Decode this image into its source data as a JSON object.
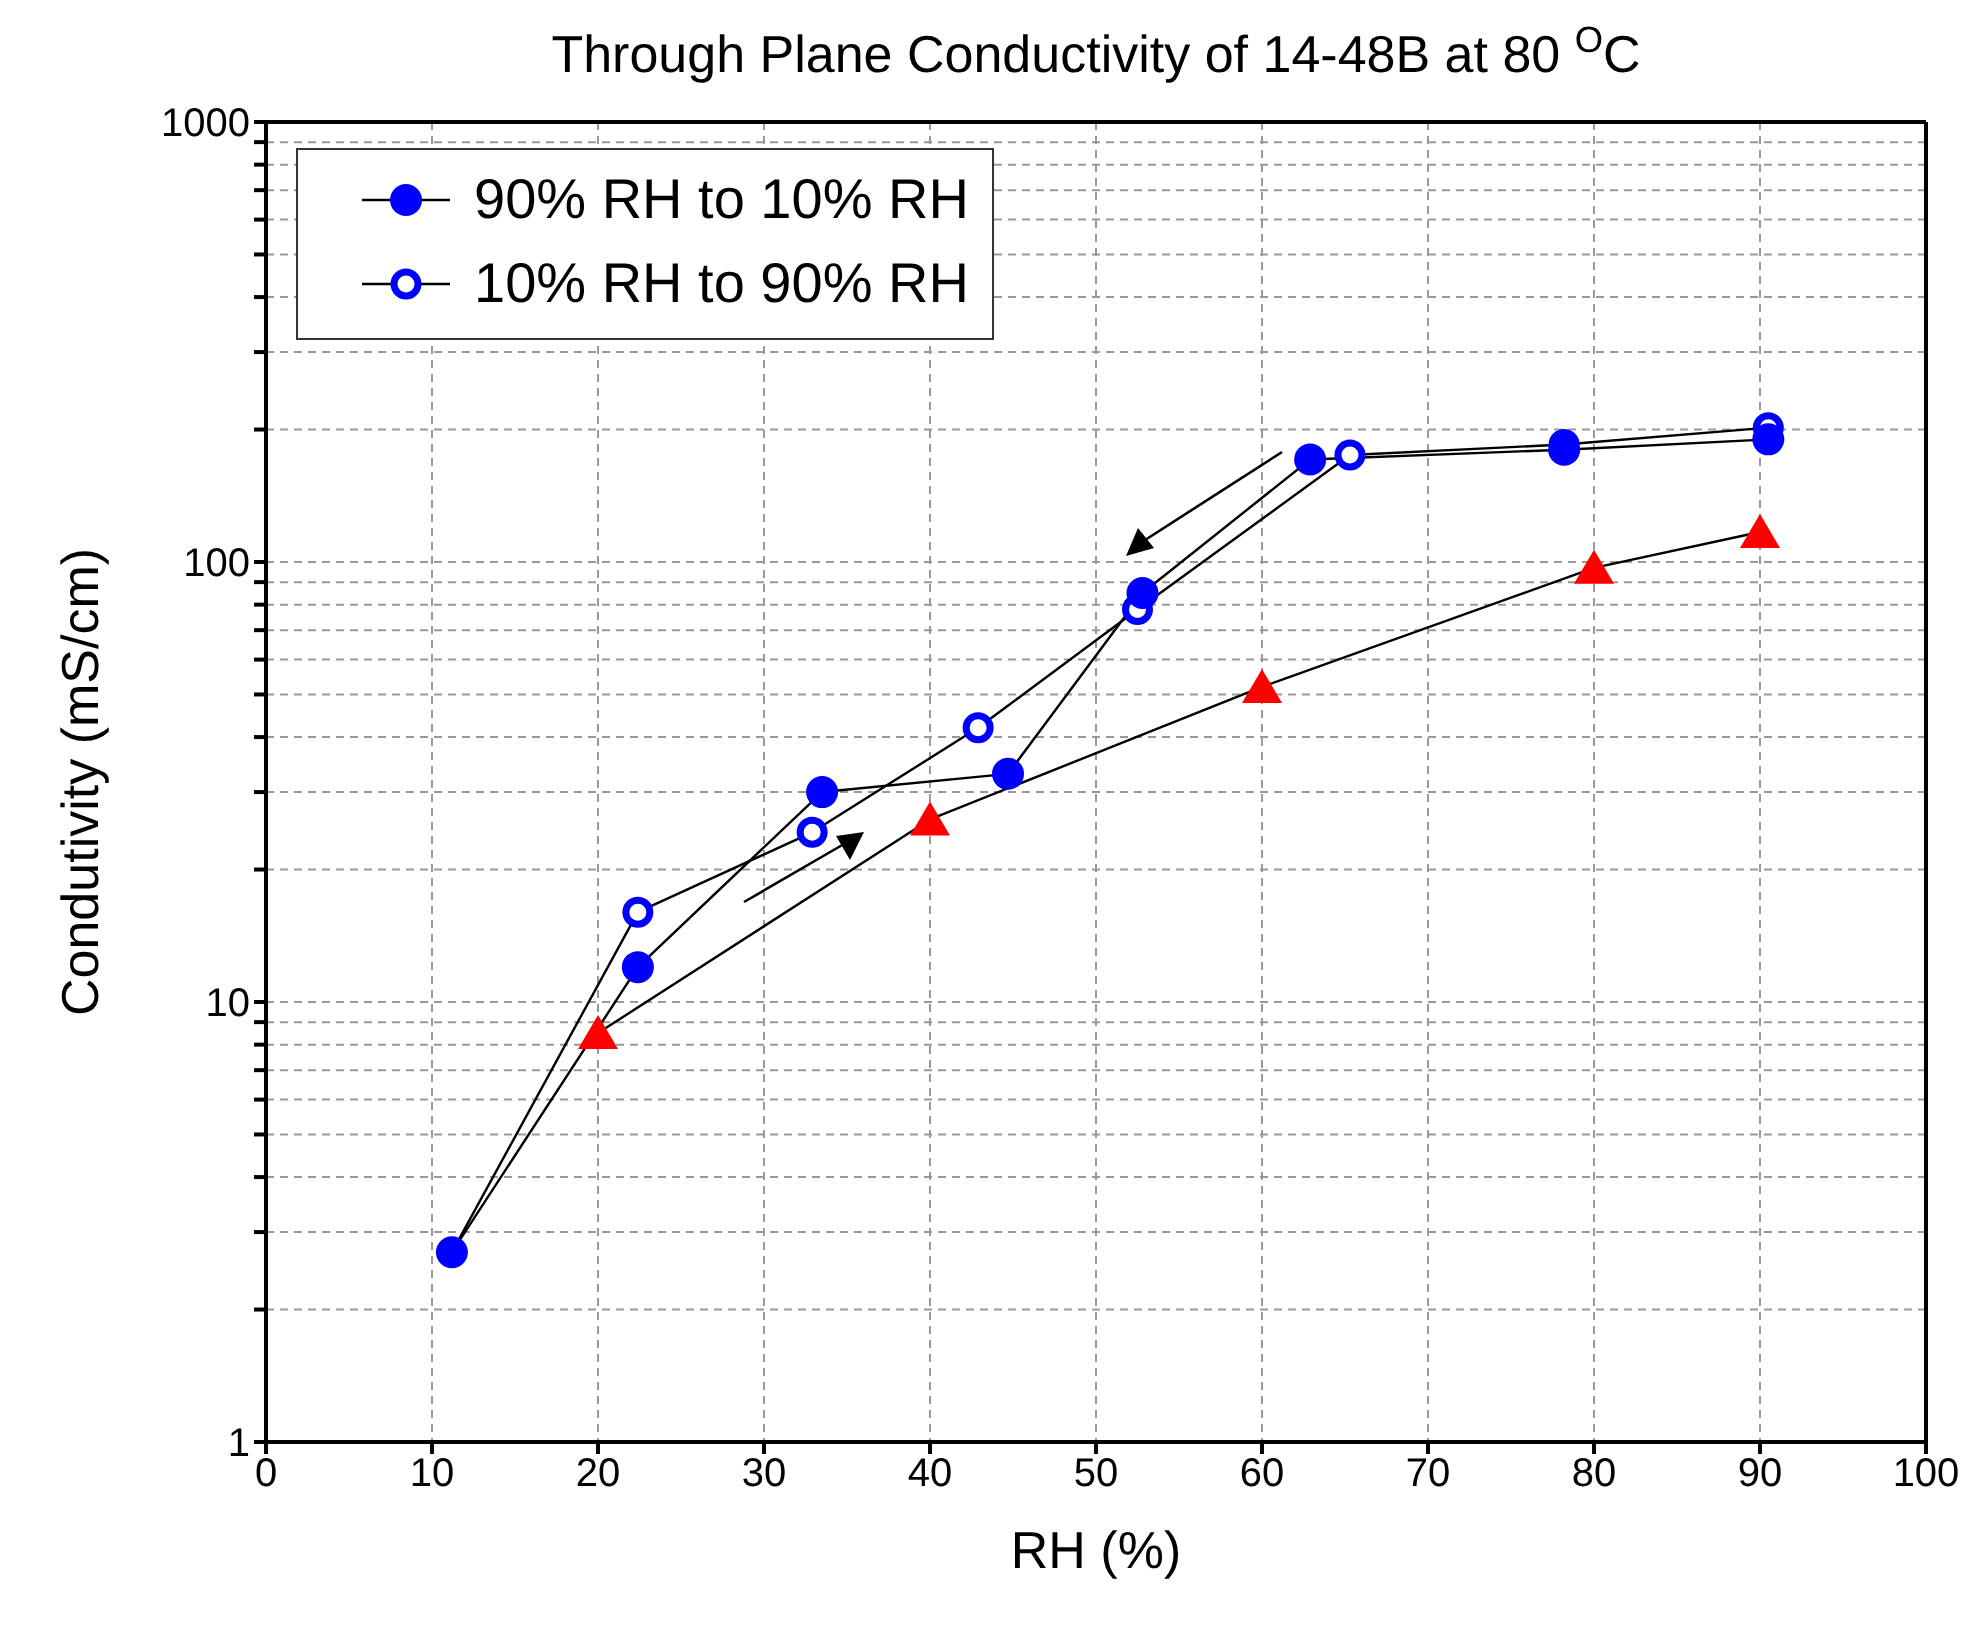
{
  "chart_data": {
    "type": "line",
    "title": "Through Plane Conductivity of 14-48B at 80 $^{O}$C",
    "xlabel": "RH (%)",
    "ylabel": "Condutivity (mS/cm)",
    "log": "y",
    "xlim": [
      0,
      100
    ],
    "xticks": [
      0,
      10,
      20,
      30,
      40,
      50,
      60,
      70,
      80,
      90,
      100
    ],
    "ylim": [
      1,
      1000
    ],
    "yticks": [
      1,
      {
        "value": 2,
        "label": null
      },
      {
        "value": 3,
        "label": null
      },
      {
        "value": 4,
        "label": null
      },
      {
        "value": 5,
        "label": null
      },
      {
        "value": 6,
        "label": null
      },
      {
        "value": 7,
        "label": null
      },
      {
        "value": 8,
        "label": null
      },
      {
        "value": 9,
        "label": null
      },
      10,
      {
        "value": 20,
        "label": null
      },
      {
        "value": 30,
        "label": null
      },
      {
        "value": 40,
        "label": null
      },
      {
        "value": 50,
        "label": null
      },
      {
        "value": 60,
        "label": null
      },
      {
        "value": 70,
        "label": null
      },
      {
        "value": 80,
        "label": null
      },
      {
        "value": 90,
        "label": null
      },
      100,
      {
        "value": 200,
        "label": null
      },
      {
        "value": 300,
        "label": null
      },
      {
        "value": 400,
        "label": null
      },
      {
        "value": 500,
        "label": null
      },
      {
        "value": 600,
        "label": null
      },
      {
        "value": 700,
        "label": null
      },
      {
        "value": 800,
        "label": null
      },
      {
        "value": 900,
        "label": null
      },
      1000
    ],
    "grid": true,
    "legend": "top left",
    "line_style": "solid",
    "series": [
      {
        "name": "90% RH to 10% RH",
        "color": "#0000ff",
        "marker": "circle",
        "x": [
          90.5,
          78.2,
          62.9,
          52.8,
          44.7,
          33.5,
          22.4,
          11.2
        ],
        "values": [
          190,
          180,
          171,
          85,
          33,
          30,
          12,
          2.7
        ]
      },
      {
        "name": "10% RH to 90% RH",
        "color": "#0000ff",
        "marker": "circle",
        "x": [
          11.2,
          22.4,
          32.9,
          42.9,
          52.5,
          65.3,
          78.2,
          90.5
        ],
        "values": [
          2.7,
          16,
          24.3,
          42,
          78,
          175,
          185,
          202
        ]
      },
      {
        "color": "#ff0000",
        "marker": "triangle",
        "x": [
          20,
          40,
          60,
          80,
          90
        ],
        "values": [
          8.5,
          26,
          52,
          97,
          117
        ]
      }
    ]
  }
}
